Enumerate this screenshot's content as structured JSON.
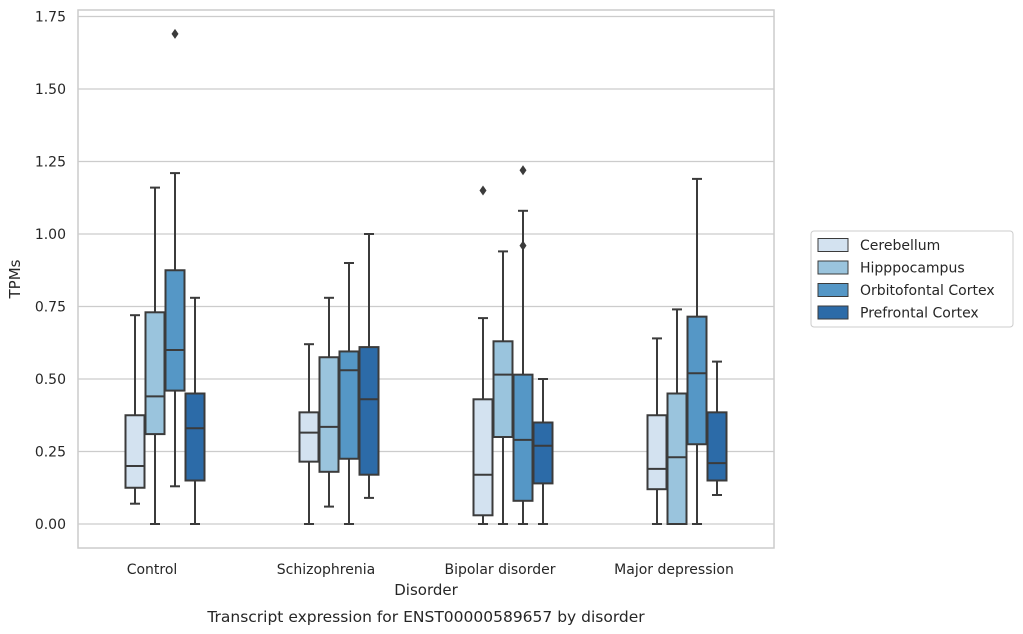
{
  "chart_data": {
    "type": "box",
    "caption": "Transcript expression for ENST00000589657 by disorder",
    "xlabel": "Disorder",
    "ylabel": "TPMs",
    "ylim": [
      -0.08,
      1.77
    ],
    "yticks": [
      "0.00",
      "0.25",
      "0.50",
      "0.75",
      "1.00",
      "1.25",
      "1.50",
      "1.75"
    ],
    "ytick_values": [
      0,
      0.25,
      0.5,
      0.75,
      1.0,
      1.25,
      1.5,
      1.75
    ],
    "grid": true,
    "legend_position": "right",
    "categories": [
      "Control",
      "Schizophrenia",
      "Bipolar disorder",
      "Major depression"
    ],
    "series": [
      {
        "name": "Cerebellum",
        "color": "#d3e2f0",
        "boxes": [
          {
            "whislo": 0.07,
            "q1": 0.125,
            "med": 0.2,
            "q3": 0.375,
            "whishi": 0.72,
            "fliers": []
          },
          {
            "whislo": 0.0,
            "q1": 0.215,
            "med": 0.315,
            "q3": 0.385,
            "whishi": 0.62,
            "fliers": []
          },
          {
            "whislo": 0.0,
            "q1": 0.03,
            "med": 0.17,
            "q3": 0.43,
            "whishi": 0.71,
            "fliers": [
              1.15
            ]
          },
          {
            "whislo": 0.0,
            "q1": 0.12,
            "med": 0.19,
            "q3": 0.375,
            "whishi": 0.64,
            "fliers": []
          }
        ]
      },
      {
        "name": "Hipppocampus",
        "color": "#9ac4dd",
        "boxes": [
          {
            "whislo": 0.0,
            "q1": 0.31,
            "med": 0.44,
            "q3": 0.73,
            "whishi": 1.16,
            "fliers": []
          },
          {
            "whislo": 0.06,
            "q1": 0.18,
            "med": 0.335,
            "q3": 0.575,
            "whishi": 0.78,
            "fliers": []
          },
          {
            "whislo": 0.0,
            "q1": 0.3,
            "med": 0.515,
            "q3": 0.63,
            "whishi": 0.94,
            "fliers": []
          },
          {
            "whislo": 0.0,
            "q1": 0.0,
            "med": 0.23,
            "q3": 0.45,
            "whishi": 0.74,
            "fliers": []
          }
        ]
      },
      {
        "name": "Orbitofontal Cortex",
        "color": "#5597c6",
        "boxes": [
          {
            "whislo": 0.13,
            "q1": 0.46,
            "med": 0.6,
            "q3": 0.875,
            "whishi": 1.21,
            "fliers": [
              1.69
            ]
          },
          {
            "whislo": 0.0,
            "q1": 0.225,
            "med": 0.53,
            "q3": 0.595,
            "whishi": 0.9,
            "fliers": []
          },
          {
            "whislo": 0.0,
            "q1": 0.08,
            "med": 0.29,
            "q3": 0.515,
            "whishi": 1.08,
            "fliers": [
              1.22,
              0.96
            ]
          },
          {
            "whislo": 0.0,
            "q1": 0.275,
            "med": 0.52,
            "q3": 0.715,
            "whishi": 1.19,
            "fliers": []
          }
        ]
      },
      {
        "name": "Prefrontal Cortex",
        "color": "#2c6ba8",
        "boxes": [
          {
            "whislo": 0.0,
            "q1": 0.15,
            "med": 0.33,
            "q3": 0.45,
            "whishi": 0.78,
            "fliers": []
          },
          {
            "whislo": 0.09,
            "q1": 0.17,
            "med": 0.43,
            "q3": 0.61,
            "whishi": 1.0,
            "fliers": []
          },
          {
            "whislo": 0.0,
            "q1": 0.14,
            "med": 0.27,
            "q3": 0.35,
            "whishi": 0.5,
            "fliers": []
          },
          {
            "whislo": 0.1,
            "q1": 0.15,
            "med": 0.21,
            "q3": 0.385,
            "whishi": 0.56,
            "fliers": []
          }
        ]
      }
    ]
  }
}
